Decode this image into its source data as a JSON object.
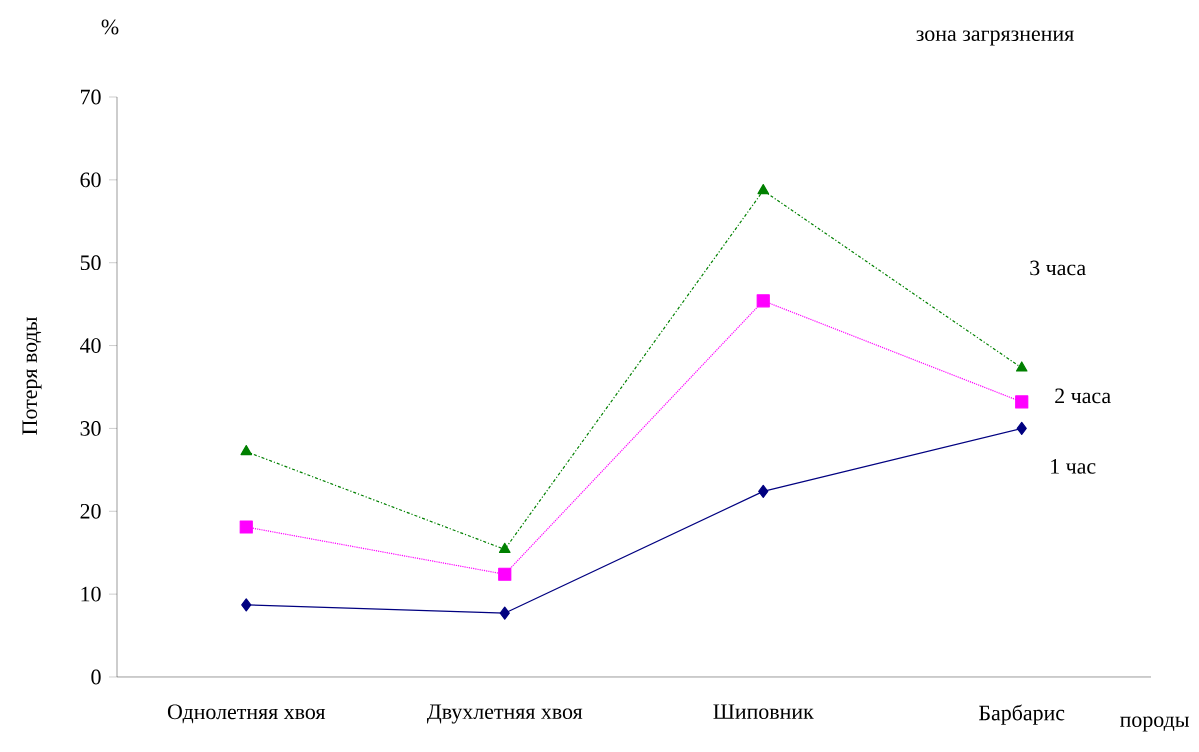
{
  "chart_data": {
    "type": "line",
    "ylabel": "Потеря воды",
    "xlabel": "породы",
    "annotations": [
      "%",
      "зона загрязнения"
    ],
    "categories": [
      "Однолетняя хвоя",
      "Двухлетняя хвоя",
      "Шиповник",
      "Барбарис"
    ],
    "series": [
      {
        "name": "1 час",
        "color": "#000080",
        "marker": "diamond",
        "line_style": "solid",
        "values": [
          8.7,
          7.7,
          22.4,
          30.0
        ]
      },
      {
        "name": "2 часа",
        "color": "#ff00ff",
        "marker": "square",
        "line_style": "dotted",
        "values": [
          18.1,
          12.4,
          45.4,
          33.2
        ]
      },
      {
        "name": "3 часа",
        "color": "#008000",
        "marker": "triangle",
        "line_style": "dash dot",
        "values": [
          27.2,
          15.4,
          58.7,
          37.3
        ]
      }
    ],
    "ylim": [
      0,
      70
    ],
    "yticks": [
      0,
      10,
      20,
      30,
      40,
      50,
      60,
      70
    ],
    "grid": false,
    "legend": false
  }
}
